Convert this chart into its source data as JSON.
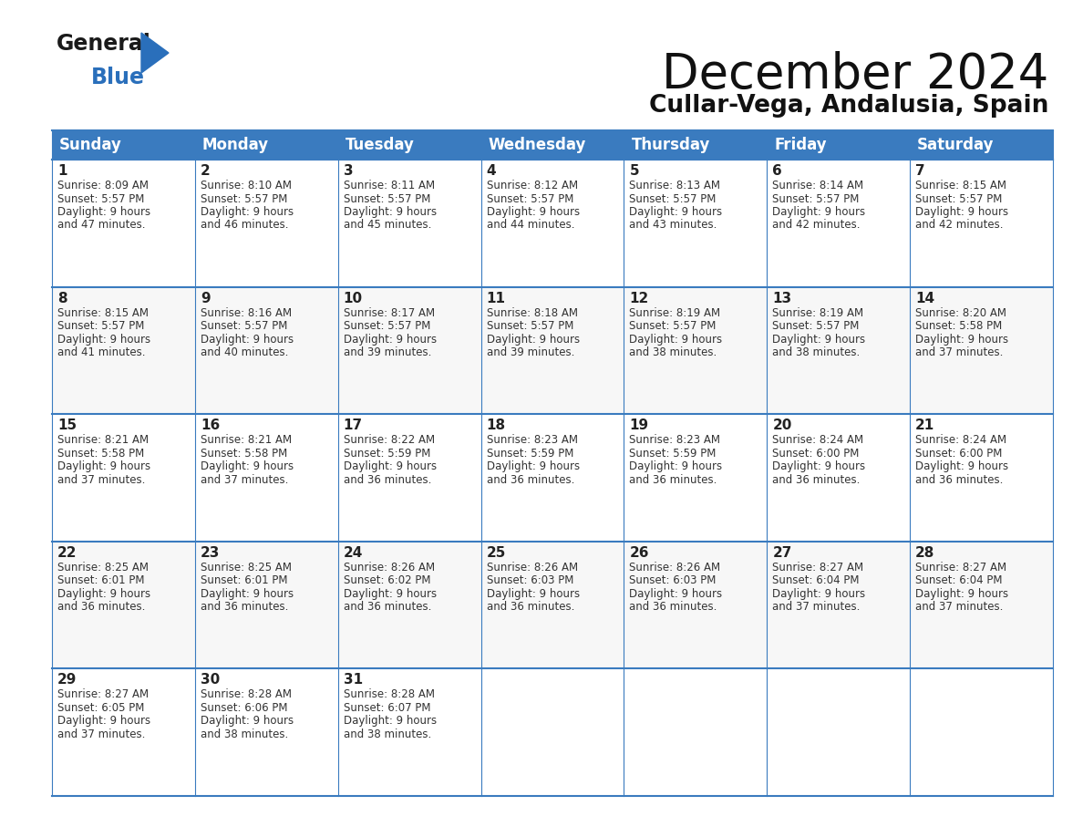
{
  "title": "December 2024",
  "subtitle": "Cullar-Vega, Andalusia, Spain",
  "header_color": "#3a7bbf",
  "header_text_color": "#ffffff",
  "border_color": "#3a7bbf",
  "days_of_week": [
    "Sunday",
    "Monday",
    "Tuesday",
    "Wednesday",
    "Thursday",
    "Friday",
    "Saturday"
  ],
  "weeks": [
    [
      {
        "day": 1,
        "sunrise": "8:09 AM",
        "sunset": "5:57 PM",
        "daylight": "9 hours\nand 47 minutes."
      },
      {
        "day": 2,
        "sunrise": "8:10 AM",
        "sunset": "5:57 PM",
        "daylight": "9 hours\nand 46 minutes."
      },
      {
        "day": 3,
        "sunrise": "8:11 AM",
        "sunset": "5:57 PM",
        "daylight": "9 hours\nand 45 minutes."
      },
      {
        "day": 4,
        "sunrise": "8:12 AM",
        "sunset": "5:57 PM",
        "daylight": "9 hours\nand 44 minutes."
      },
      {
        "day": 5,
        "sunrise": "8:13 AM",
        "sunset": "5:57 PM",
        "daylight": "9 hours\nand 43 minutes."
      },
      {
        "day": 6,
        "sunrise": "8:14 AM",
        "sunset": "5:57 PM",
        "daylight": "9 hours\nand 42 minutes."
      },
      {
        "day": 7,
        "sunrise": "8:15 AM",
        "sunset": "5:57 PM",
        "daylight": "9 hours\nand 42 minutes."
      }
    ],
    [
      {
        "day": 8,
        "sunrise": "8:15 AM",
        "sunset": "5:57 PM",
        "daylight": "9 hours\nand 41 minutes."
      },
      {
        "day": 9,
        "sunrise": "8:16 AM",
        "sunset": "5:57 PM",
        "daylight": "9 hours\nand 40 minutes."
      },
      {
        "day": 10,
        "sunrise": "8:17 AM",
        "sunset": "5:57 PM",
        "daylight": "9 hours\nand 39 minutes."
      },
      {
        "day": 11,
        "sunrise": "8:18 AM",
        "sunset": "5:57 PM",
        "daylight": "9 hours\nand 39 minutes."
      },
      {
        "day": 12,
        "sunrise": "8:19 AM",
        "sunset": "5:57 PM",
        "daylight": "9 hours\nand 38 minutes."
      },
      {
        "day": 13,
        "sunrise": "8:19 AM",
        "sunset": "5:57 PM",
        "daylight": "9 hours\nand 38 minutes."
      },
      {
        "day": 14,
        "sunrise": "8:20 AM",
        "sunset": "5:58 PM",
        "daylight": "9 hours\nand 37 minutes."
      }
    ],
    [
      {
        "day": 15,
        "sunrise": "8:21 AM",
        "sunset": "5:58 PM",
        "daylight": "9 hours\nand 37 minutes."
      },
      {
        "day": 16,
        "sunrise": "8:21 AM",
        "sunset": "5:58 PM",
        "daylight": "9 hours\nand 37 minutes."
      },
      {
        "day": 17,
        "sunrise": "8:22 AM",
        "sunset": "5:59 PM",
        "daylight": "9 hours\nand 36 minutes."
      },
      {
        "day": 18,
        "sunrise": "8:23 AM",
        "sunset": "5:59 PM",
        "daylight": "9 hours\nand 36 minutes."
      },
      {
        "day": 19,
        "sunrise": "8:23 AM",
        "sunset": "5:59 PM",
        "daylight": "9 hours\nand 36 minutes."
      },
      {
        "day": 20,
        "sunrise": "8:24 AM",
        "sunset": "6:00 PM",
        "daylight": "9 hours\nand 36 minutes."
      },
      {
        "day": 21,
        "sunrise": "8:24 AM",
        "sunset": "6:00 PM",
        "daylight": "9 hours\nand 36 minutes."
      }
    ],
    [
      {
        "day": 22,
        "sunrise": "8:25 AM",
        "sunset": "6:01 PM",
        "daylight": "9 hours\nand 36 minutes."
      },
      {
        "day": 23,
        "sunrise": "8:25 AM",
        "sunset": "6:01 PM",
        "daylight": "9 hours\nand 36 minutes."
      },
      {
        "day": 24,
        "sunrise": "8:26 AM",
        "sunset": "6:02 PM",
        "daylight": "9 hours\nand 36 minutes."
      },
      {
        "day": 25,
        "sunrise": "8:26 AM",
        "sunset": "6:03 PM",
        "daylight": "9 hours\nand 36 minutes."
      },
      {
        "day": 26,
        "sunrise": "8:26 AM",
        "sunset": "6:03 PM",
        "daylight": "9 hours\nand 36 minutes."
      },
      {
        "day": 27,
        "sunrise": "8:27 AM",
        "sunset": "6:04 PM",
        "daylight": "9 hours\nand 37 minutes."
      },
      {
        "day": 28,
        "sunrise": "8:27 AM",
        "sunset": "6:04 PM",
        "daylight": "9 hours\nand 37 minutes."
      }
    ],
    [
      {
        "day": 29,
        "sunrise": "8:27 AM",
        "sunset": "6:05 PM",
        "daylight": "9 hours\nand 37 minutes."
      },
      {
        "day": 30,
        "sunrise": "8:28 AM",
        "sunset": "6:06 PM",
        "daylight": "9 hours\nand 38 minutes."
      },
      {
        "day": 31,
        "sunrise": "8:28 AM",
        "sunset": "6:07 PM",
        "daylight": "9 hours\nand 38 minutes."
      },
      null,
      null,
      null,
      null
    ]
  ],
  "logo_color_general": "#1a1a1a",
  "logo_color_blue": "#2a6fbb",
  "title_fontsize": 38,
  "subtitle_fontsize": 19,
  "header_fontsize": 12,
  "day_number_fontsize": 11,
  "cell_text_fontsize": 8.5
}
